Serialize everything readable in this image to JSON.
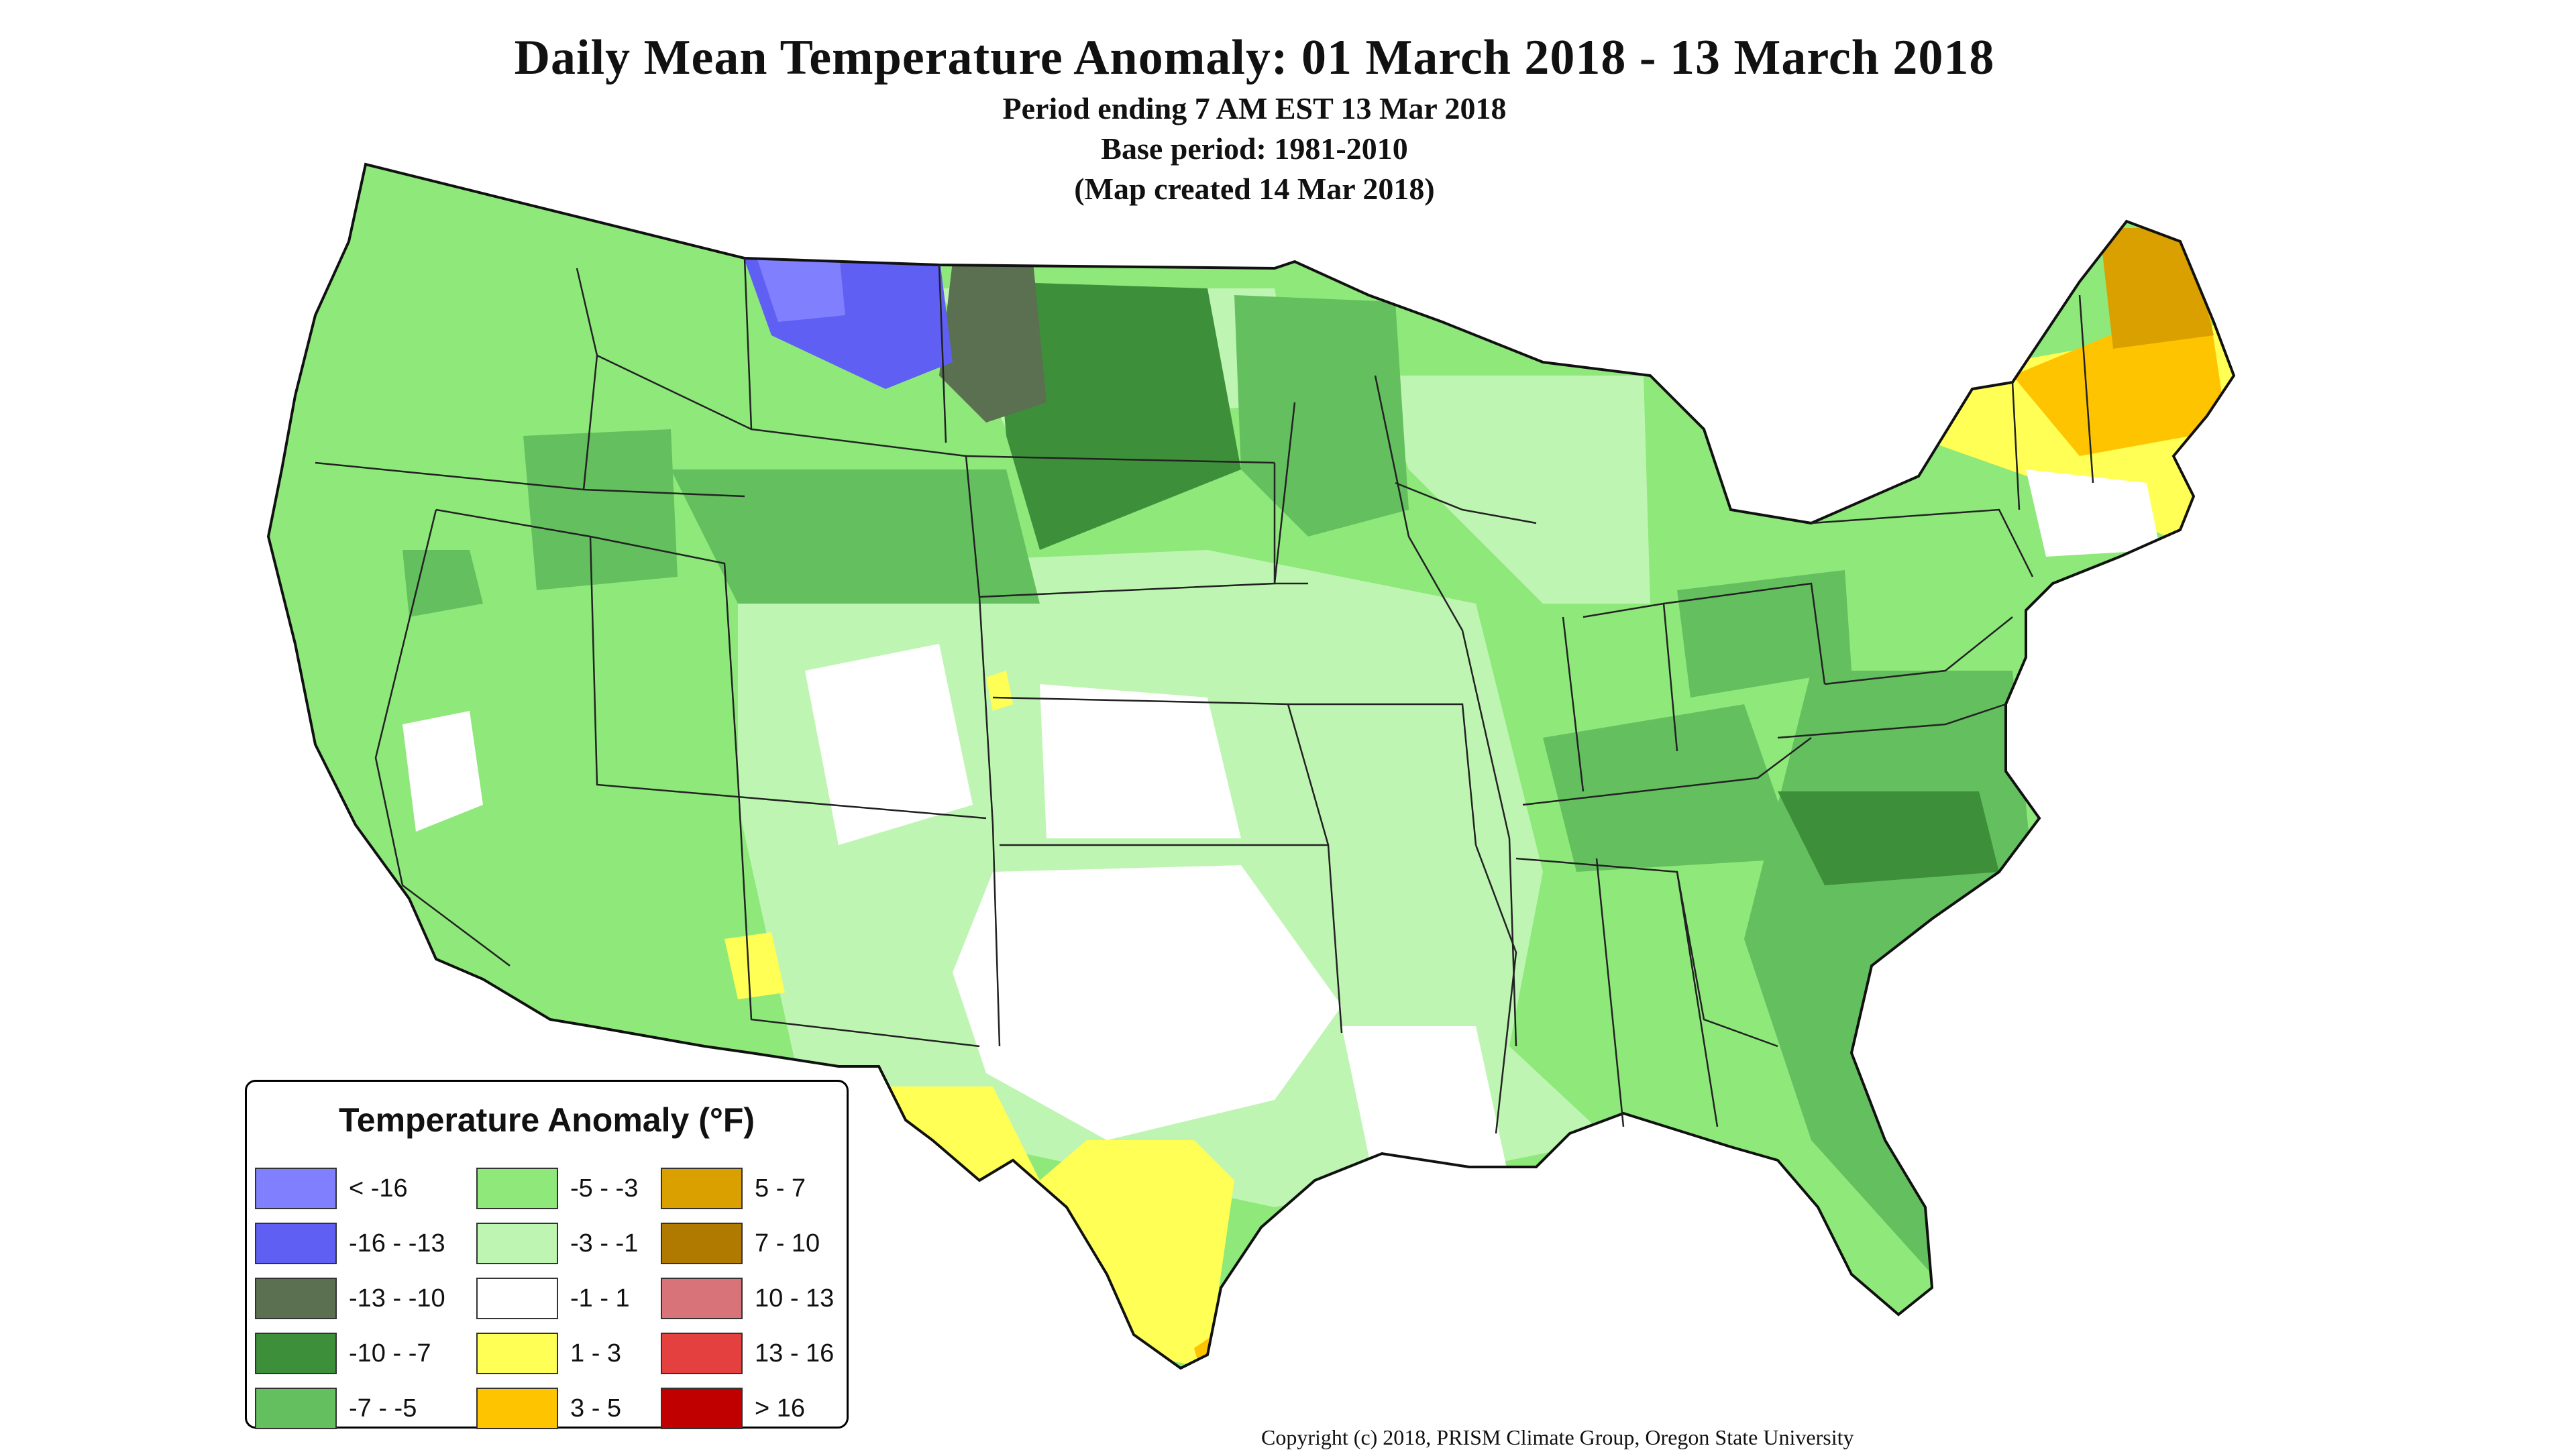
{
  "title": "Daily Mean Temperature Anomaly: 01 March 2018 - 13 March 2018",
  "subtitle_lines": [
    "Period ending 7 AM EST 13 Mar 2018",
    "Base period: 1981-2010",
    "(Map created 14 Mar 2018)"
  ],
  "legend": {
    "title": "Temperature Anomaly (°F)",
    "items": [
      {
        "label": "< -16",
        "color": "#8080ff"
      },
      {
        "label": "-16 - -13",
        "color": "#5f5ff4"
      },
      {
        "label": "-13 - -10",
        "color": "#5b7050"
      },
      {
        "label": "-10 - -7",
        "color": "#3d8f3a"
      },
      {
        "label": "-7 - -5",
        "color": "#64bf5e"
      },
      {
        "label": "-5 - -3",
        "color": "#8ee87a"
      },
      {
        "label": "-3 - -1",
        "color": "#bff5b3"
      },
      {
        "label": "-1 - 1",
        "color": "#ffffff"
      },
      {
        "label": "1 - 3",
        "color": "#ffff55"
      },
      {
        "label": "3 - 5",
        "color": "#ffc400"
      },
      {
        "label": "5 - 7",
        "color": "#d9a000"
      },
      {
        "label": "7 - 10",
        "color": "#b07a00"
      },
      {
        "label": "10 - 13",
        "color": "#d8737a"
      },
      {
        "label": "13 - 16",
        "color": "#e54040"
      },
      {
        "label": "> 16",
        "color": "#c00000"
      }
    ]
  },
  "copyright": "Copyright (c) 2018, PRISM Climate Group, Oregon State University"
}
